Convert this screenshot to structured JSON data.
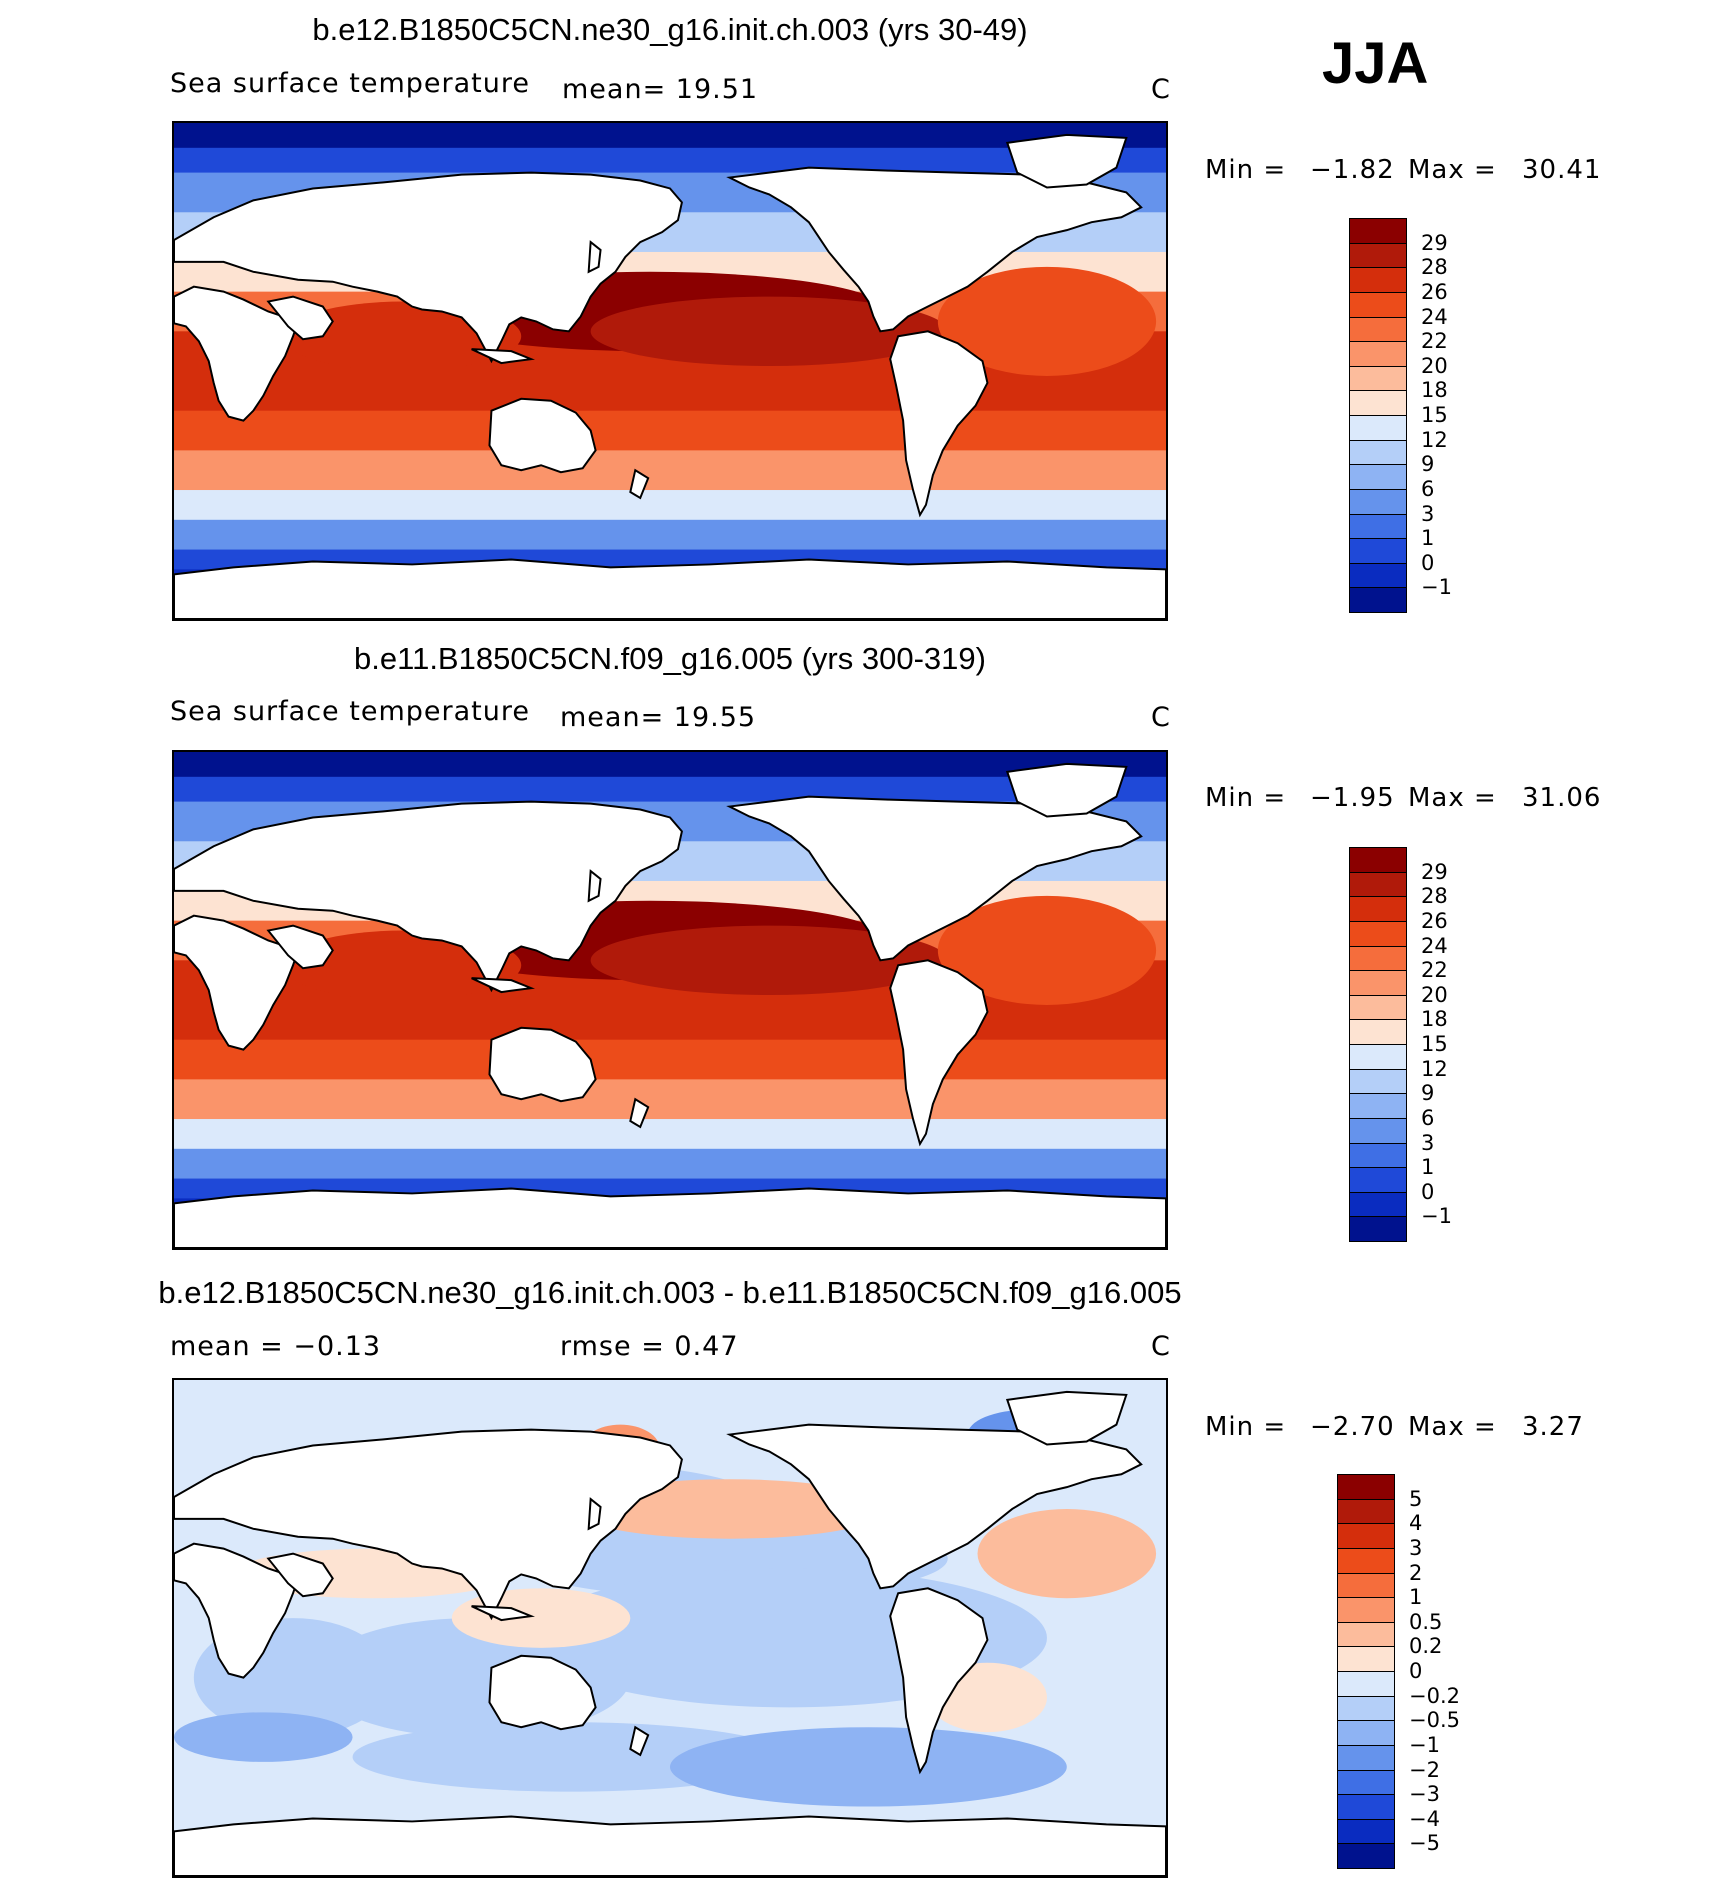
{
  "season": "JJA",
  "panels": [
    {
      "id": "p1",
      "title": "b.e12.B1850C5CN.ne30_g16.init.ch.003 (yrs 30-49)",
      "left_label": "Sea surface temperature",
      "stat1": "mean=   19.51",
      "stat2": "",
      "units": "C",
      "min_label": "Min  =",
      "min_value": "−1.82",
      "max_label": "Max  =",
      "max_value": "30.41",
      "levels": [
        "29",
        "28",
        "26",
        "24",
        "22",
        "20",
        "18",
        "15",
        "12",
        "9",
        "6",
        "3",
        "1",
        "0",
        "−1"
      ],
      "colors": [
        "#8b0000",
        "#b01a0a",
        "#d42e0c",
        "#ec4c1a",
        "#f56d3c",
        "#fa946a",
        "#fcbc9c",
        "#fde3d2",
        "#dbe9fb",
        "#b4cff8",
        "#8eb3f3",
        "#6593ec",
        "#3f6fe5",
        "#1f49d8",
        "#0a2cc0",
        "#00128e"
      ]
    },
    {
      "id": "p2",
      "title": "b.e11.B1850C5CN.f09_g16.005 (yrs 300-319)",
      "left_label": "Sea surface temperature",
      "stat1": "mean=   19.55",
      "stat2": "",
      "units": "C",
      "min_label": "Min  =",
      "min_value": "−1.95",
      "max_label": "Max  =",
      "max_value": "31.06",
      "levels": [
        "29",
        "28",
        "26",
        "24",
        "22",
        "20",
        "18",
        "15",
        "12",
        "9",
        "6",
        "3",
        "1",
        "0",
        "−1"
      ],
      "colors": [
        "#8b0000",
        "#b01a0a",
        "#d42e0c",
        "#ec4c1a",
        "#f56d3c",
        "#fa946a",
        "#fcbc9c",
        "#fde3d2",
        "#dbe9fb",
        "#b4cff8",
        "#8eb3f3",
        "#6593ec",
        "#3f6fe5",
        "#1f49d8",
        "#0a2cc0",
        "#00128e"
      ]
    },
    {
      "id": "p3",
      "title": "b.e12.B1850C5CN.ne30_g16.init.ch.003 - b.e11.B1850C5CN.f09_g16.005",
      "left_label": "",
      "stat1": "mean  =   −0.13",
      "stat2": "rmse  =    0.47",
      "units": "C",
      "min_label": "Min  =",
      "min_value": "−2.70",
      "max_label": "Max  =",
      "max_value": "3.27",
      "levels": [
        "5",
        "4",
        "3",
        "2",
        "1",
        "0.5",
        "0.2",
        "0",
        "−0.2",
        "−0.5",
        "−1",
        "−2",
        "−3",
        "−4",
        "−5"
      ],
      "colors": [
        "#8b0000",
        "#b01a0a",
        "#d42e0c",
        "#ec4c1a",
        "#f56d3c",
        "#fa946a",
        "#fcbc9c",
        "#fde3d2",
        "#dbe9fb",
        "#b4cff8",
        "#8eb3f3",
        "#6593ec",
        "#3f6fe5",
        "#1f49d8",
        "#0a2cc0",
        "#00128e"
      ]
    }
  ]
}
